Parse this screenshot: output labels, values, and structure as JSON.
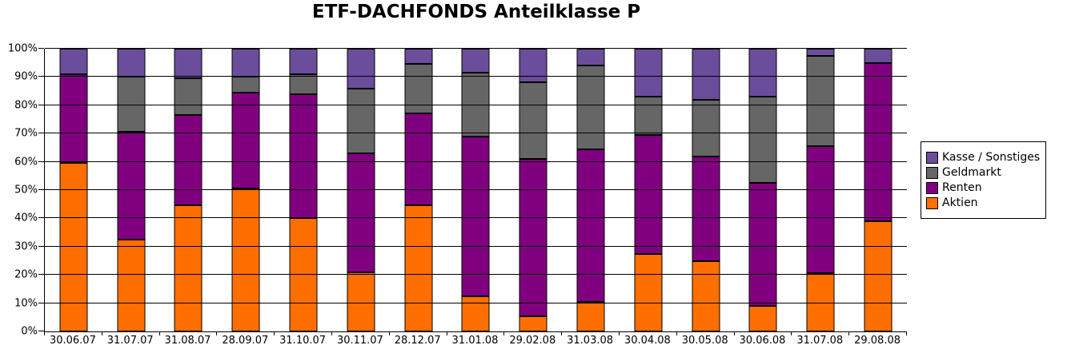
{
  "title": "ETF-DACHFONDS Anteilklasse P",
  "chart_data": {
    "type": "bar",
    "variant": "stacked-100-percent",
    "title": "ETF-DACHFONDS Anteilklasse P",
    "xlabel": "",
    "ylabel": "",
    "grid": "horizontal",
    "y_axis": {
      "min": 0,
      "max": 100,
      "step": 10,
      "tick_suffix": "%",
      "ticks": [
        "0%",
        "10%",
        "20%",
        "30%",
        "40%",
        "50%",
        "60%",
        "70%",
        "80%",
        "90%",
        "100%"
      ]
    },
    "categories": [
      "30.06.07",
      "31.07.07",
      "31.08.07",
      "28.09.07",
      "31.10.07",
      "30.11.07",
      "28.12.07",
      "31.01.08",
      "29.02.08",
      "31.03.08",
      "30.04.08",
      "30.05.08",
      "30.06.08",
      "31.07.08",
      "29.08.08"
    ],
    "series": [
      {
        "name": "Aktien",
        "color": "#FF6F00",
        "values": [
          59.5,
          32.5,
          44.5,
          50.5,
          40.0,
          21.0,
          44.5,
          12.5,
          5.5,
          10.5,
          27.5,
          25.0,
          9.0,
          20.5,
          39.0
        ]
      },
      {
        "name": "Renten",
        "color": "#800080",
        "values": [
          31.5,
          38.0,
          32.0,
          34.0,
          44.0,
          42.0,
          32.5,
          56.5,
          55.5,
          54.0,
          42.0,
          37.0,
          43.5,
          45.0,
          56.0
        ]
      },
      {
        "name": "Geldmarkt",
        "color": "#666666",
        "values": [
          0.0,
          19.5,
          13.0,
          5.5,
          7.0,
          23.0,
          17.5,
          22.5,
          27.0,
          29.5,
          13.5,
          20.0,
          30.5,
          32.0,
          0.0
        ]
      },
      {
        "name": "Kasse / Sonstiges",
        "color": "#6A4D9B",
        "values": [
          9.0,
          10.0,
          10.5,
          10.0,
          9.0,
          14.0,
          5.5,
          8.5,
          12.0,
          6.0,
          17.0,
          18.0,
          17.0,
          2.5,
          5.0
        ]
      }
    ],
    "legend": {
      "position": "right",
      "entries": [
        "Kasse / Sonstiges",
        "Geldmarkt",
        "Renten",
        "Aktien"
      ]
    }
  }
}
